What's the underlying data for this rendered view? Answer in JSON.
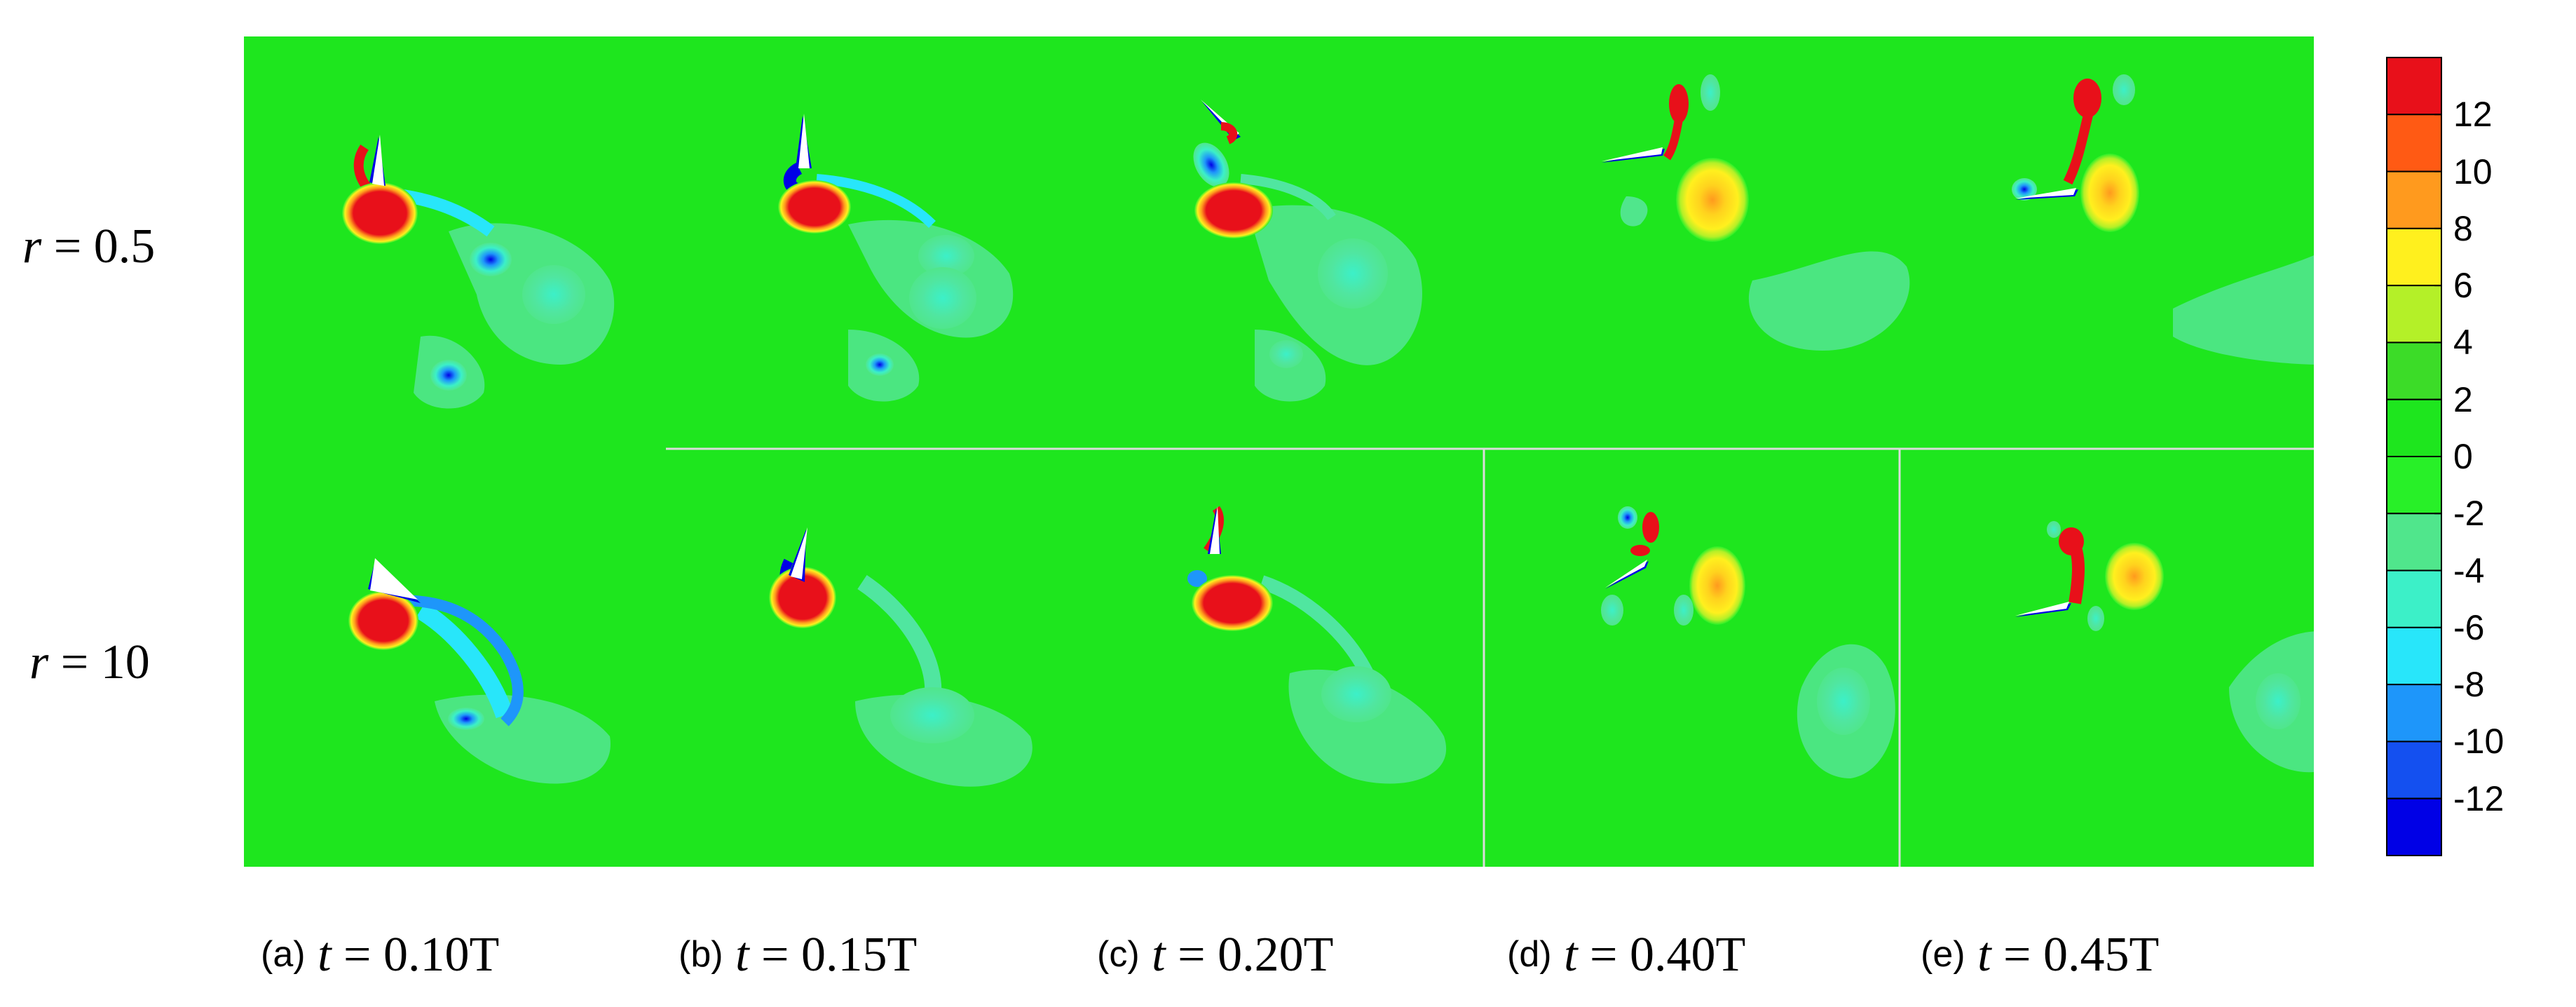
{
  "rows": [
    {
      "var": "r",
      "eq": "= 0.5"
    },
    {
      "var": "r",
      "eq": "= 10"
    }
  ],
  "captions": [
    {
      "tag": "(a)",
      "var": "t",
      "eq": "= 0.10T"
    },
    {
      "tag": "(b)",
      "var": "t",
      "eq": "= 0.15T"
    },
    {
      "tag": "(c)",
      "var": "t",
      "eq": "= 0.20T"
    },
    {
      "tag": "(d)",
      "var": "t",
      "eq": "= 0.40T"
    },
    {
      "tag": "(e)",
      "var": "t",
      "eq": "= 0.45T"
    }
  ],
  "colorbar": {
    "labels": [
      "12",
      "10",
      "8",
      "6",
      "4",
      "2",
      "0",
      "-2",
      "-4",
      "-6",
      "-8",
      "-10",
      "-12"
    ],
    "colors": [
      "#e8101a",
      "#ff5a14",
      "#ff9a1e",
      "#fff01e",
      "#b4f028",
      "#3cdc28",
      "#1ee61e",
      "#28f028",
      "#50e68c",
      "#3cf0c8",
      "#28e6fa",
      "#1e96fa",
      "#1450f0",
      "#0000e6"
    ]
  },
  "background_color": "#00e600"
}
